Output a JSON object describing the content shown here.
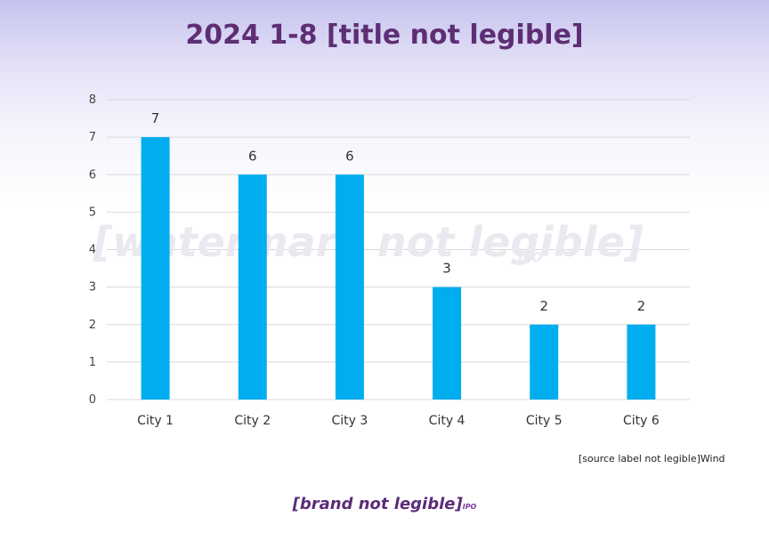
{
  "page": {
    "title": "2024 1-8 [title not legible]",
    "source_label": "[source label not legible]Wind",
    "watermark": "[watermark not legible]",
    "watermark_sub": "IPO",
    "brand": "[brand not legible]",
    "brand_sub": "IPO"
  },
  "colors": {
    "bar": "#00aeef",
    "grid": "#d9d9d9",
    "title": "#5e2e74",
    "brand": "#5b2c7a"
  },
  "chart_data": {
    "type": "bar",
    "categories": [
      "City 1",
      "City 2",
      "City 3",
      "City 4",
      "City 5",
      "City 6"
    ],
    "values": [
      7,
      6,
      6,
      3,
      2,
      2
    ],
    "yticks": [
      0,
      1,
      2,
      3,
      4,
      5,
      6,
      7,
      8
    ],
    "ylim": [
      0,
      8
    ],
    "grid": true,
    "data_labels": true,
    "legend": "none"
  }
}
